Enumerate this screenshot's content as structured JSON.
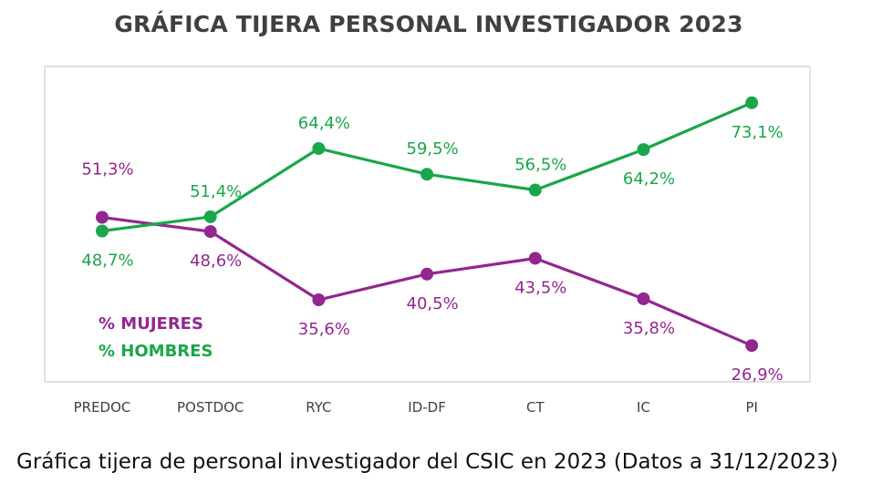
{
  "title": "GRÁFICA TIJERA PERSONAL INVESTIGADOR 2023",
  "caption": "Gráfica tijera de personal investigador del CSIC en 2023 (Datos a 31/12/2023)",
  "chart_data": {
    "type": "line",
    "title": "GRÁFICA TIJERA PERSONAL INVESTIGADOR 2023",
    "categories": [
      "PREDOC",
      "POSTDOC",
      "RYC",
      "ID-DF",
      "CT",
      "IC",
      "PI"
    ],
    "series": [
      {
        "name": "% MUJERES",
        "color": "#92278f",
        "values": [
          51.3,
          48.6,
          35.6,
          40.5,
          43.5,
          35.8,
          26.9
        ],
        "labels": [
          "51,3%",
          "48,6%",
          "35,6%",
          "40,5%",
          "43,5%",
          "35,8%",
          "26,9%"
        ]
      },
      {
        "name": "% HOMBRES",
        "color": "#1aa64a",
        "values": [
          48.7,
          51.4,
          64.4,
          59.5,
          56.5,
          64.2,
          73.1
        ],
        "labels": [
          "48,7%",
          "51,4%",
          "64,4%",
          "59,5%",
          "56,5%",
          "64,2%",
          "73,1%"
        ]
      }
    ],
    "xlabel": "",
    "ylabel": "",
    "ylim": [
      20,
      80
    ],
    "grid": false,
    "legend_position": "bottom-left"
  }
}
